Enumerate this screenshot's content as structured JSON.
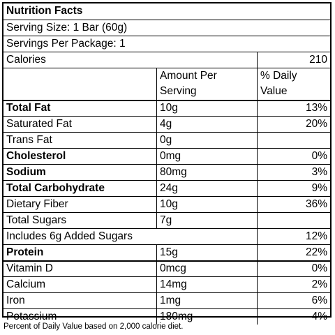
{
  "title": "Nutrition Facts",
  "serving_size": "Serving Size:   1 Bar (60g)",
  "servings_per_package": "Servings Per Package: 1",
  "calories": {
    "label": "Calories",
    "value": "210"
  },
  "header": {
    "amount_line1": "Amount Per",
    "amount_line2": "Serving",
    "dv_line1": "% Daily",
    "dv_line2": "Value"
  },
  "nutrients": [
    {
      "name": "Total Fat",
      "amount": "10g",
      "dv": "13%",
      "bold": true
    },
    {
      "name": "Saturated Fat",
      "amount": "4g",
      "dv": "20%",
      "bold": false
    },
    {
      "name": "Trans Fat",
      "amount": "0g",
      "dv": "",
      "bold": false
    },
    {
      "name": "Cholesterol",
      "amount": "0mg",
      "dv": "0%",
      "bold": true
    },
    {
      "name": "Sodium",
      "amount": "80mg",
      "dv": "3%",
      "bold": true
    },
    {
      "name": "Total Carbohydrate",
      "amount": "24g",
      "dv": "9%",
      "bold": true
    },
    {
      "name": "Dietary Fiber",
      "amount": "10g",
      "dv": "36%",
      "bold": false
    },
    {
      "name": "Total Sugars",
      "amount": "7g",
      "dv": "",
      "bold": false
    },
    {
      "name": "Includes 6g Added Sugars",
      "amount": "",
      "dv": "12%",
      "bold": false
    },
    {
      "name": "Protein",
      "amount": "15g",
      "dv": "22%",
      "bold": true
    }
  ],
  "vitamins": [
    {
      "name": "Vitamin D",
      "amount": "0mcg",
      "dv": "0%"
    },
    {
      "name": "Calcium",
      "amount": "14mg",
      "dv": "2%"
    },
    {
      "name": "Iron",
      "amount": "1mg",
      "dv": "6%"
    },
    {
      "name": "Potassium",
      "amount": "180mg",
      "dv": "4%"
    }
  ],
  "footnote": "Percent of Daily Value based on 2,000 calorie diet."
}
